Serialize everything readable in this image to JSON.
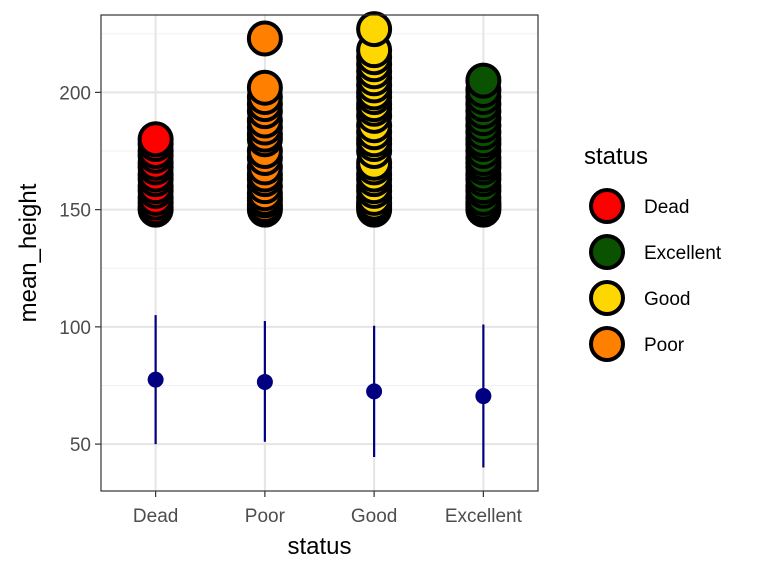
{
  "chart_data": {
    "type": "scatter",
    "title": "",
    "xlabel": "status",
    "ylabel": "mean_height",
    "categories": [
      "Dead",
      "Poor",
      "Good",
      "Excellent"
    ],
    "ylim": [
      30,
      233
    ],
    "yticks": [
      50,
      100,
      150,
      200
    ],
    "grid": true,
    "legend": {
      "title": "status",
      "position": "right",
      "entries": [
        "Dead",
        "Excellent",
        "Good",
        "Poor"
      ]
    },
    "colors": {
      "Dead": "#ff0000",
      "Excellent": "#0b5200",
      "Good": "#ffd700",
      "Poor": "#ff7f00",
      "summary": "#000080",
      "point_outline": "#000000"
    },
    "series": [
      {
        "name": "Dead",
        "values": [
          150,
          151,
          153,
          155,
          158,
          160,
          163,
          165,
          168,
          170,
          173,
          175,
          178,
          180
        ]
      },
      {
        "name": "Poor",
        "values": [
          150,
          151,
          152,
          154,
          155,
          157,
          160,
          163,
          165,
          168,
          172,
          175,
          180,
          182,
          185,
          188,
          192,
          195,
          198,
          202,
          223
        ]
      },
      {
        "name": "Good",
        "values": [
          150,
          151,
          152,
          153,
          155,
          158,
          160,
          163,
          165,
          168,
          170,
          175,
          178,
          180,
          183,
          186,
          190,
          193,
          195,
          198,
          200,
          203,
          206,
          209,
          212,
          215,
          218,
          227
        ]
      },
      {
        "name": "Excellent",
        "values": [
          150,
          151,
          152,
          153,
          155,
          158,
          160,
          163,
          165,
          168,
          170,
          172,
          175,
          178,
          180,
          183,
          186,
          189,
          192,
          195,
          198,
          201,
          205
        ]
      }
    ],
    "summary": [
      {
        "name": "Dead",
        "mean": 77.5,
        "low": 50,
        "high": 105
      },
      {
        "name": "Poor",
        "mean": 76.5,
        "low": 51,
        "high": 102.5
      },
      {
        "name": "Good",
        "mean": 72.5,
        "low": 44.5,
        "high": 100.5
      },
      {
        "name": "Excellent",
        "mean": 70.5,
        "low": 40,
        "high": 101
      }
    ]
  }
}
